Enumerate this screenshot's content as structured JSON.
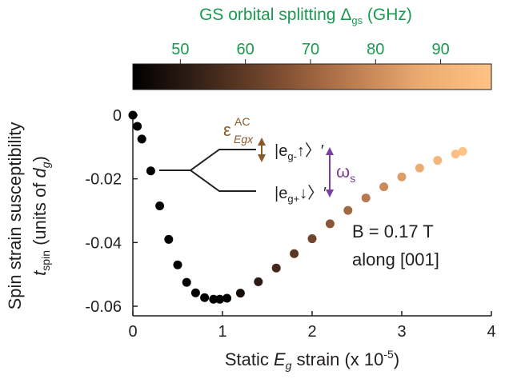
{
  "chart_data": {
    "type": "scatter",
    "xlabel": {
      "prefix": "Static ",
      "sym": "E",
      "sub": "g",
      "mid": " strain (x 10",
      "sup": "-5",
      "suffix": ")"
    },
    "ylabel": {
      "line1": "Spin strain susceptibility",
      "line2_sym": "t",
      "line2_sub": "spin",
      "line2_text": "  (units of ",
      "line2_sym2": "d",
      "line2_sub2": "g",
      "line2_end": ")"
    },
    "xlim": [
      0,
      4
    ],
    "ylim": [
      -0.06,
      0
    ],
    "xticks": [
      0,
      1,
      2,
      3,
      4
    ],
    "xtick_labels": [
      "0",
      "1",
      "2",
      "3",
      "4"
    ],
    "yticks": [
      0,
      -0.02,
      -0.04,
      -0.06
    ],
    "ytick_labels": [
      "0",
      "-0.02",
      "-0.04",
      "-0.06"
    ],
    "x": [
      0,
      0.05,
      0.1,
      0.2,
      0.3,
      0.4,
      0.5,
      0.6,
      0.7,
      0.8,
      0.9,
      0.97,
      1.05,
      1.2,
      1.4,
      1.6,
      1.8,
      2.0,
      2.2,
      2.4,
      2.6,
      2.8,
      3.0,
      3.2,
      3.4,
      3.6,
      3.68
    ],
    "y": [
      0,
      -0.0035,
      -0.0075,
      -0.0175,
      -0.0285,
      -0.039,
      -0.047,
      -0.0525,
      -0.0558,
      -0.0573,
      -0.0578,
      -0.0578,
      -0.0575,
      -0.0559,
      -0.0523,
      -0.048,
      -0.0435,
      -0.0388,
      -0.0341,
      -0.0299,
      -0.026,
      -0.0225,
      -0.0194,
      -0.0166,
      -0.0142,
      -0.0122,
      -0.0114
    ],
    "grid": false,
    "colorbar": {
      "title_text": "GS orbital splitting ",
      "title_sym": "Δ",
      "title_sub": "gs",
      "title_unit": " (GHz)",
      "ticks": [
        50,
        60,
        70,
        80,
        90
      ],
      "tick_labels": [
        "50",
        "60",
        "70",
        "80",
        "90"
      ],
      "range": [
        42.7,
        97.8
      ],
      "colors": [
        "#000000",
        "#3a2418",
        "#7a4b2f",
        "#b87a4f",
        "#ebaa70",
        "#ffc386"
      ]
    },
    "annotations": {
      "field_line1": "B = 0.17 T",
      "field_line2": "along [001]",
      "epsilon_sym": "ε",
      "epsilon_sup": "AC",
      "epsilon_sub": "Egx",
      "ket_upper": "|e",
      "ket_upper_sub": "g-",
      "ket_upper_arrow": "↑〉′",
      "ket_lower": "|e",
      "ket_lower_sub": "g+",
      "ket_lower_arrow": "↓〉′",
      "omega_sym": "ω",
      "omega_sub": "s"
    },
    "colors": {
      "axis": "#231f20",
      "colorbar_text": "#1a9a50",
      "epsilon_arrow": "#8a5a2b",
      "omega_arrow": "#7a3fa0"
    }
  }
}
